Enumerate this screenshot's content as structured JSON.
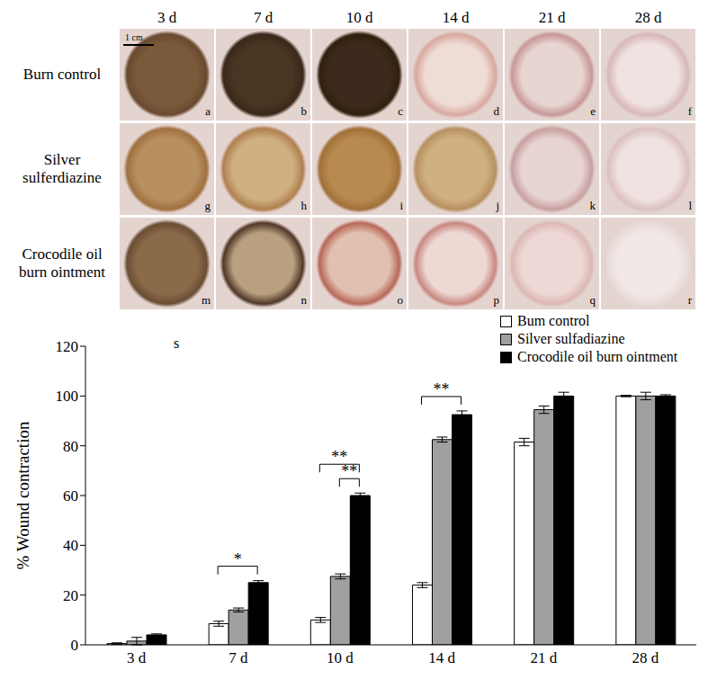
{
  "chart_data": {
    "type": "bar",
    "y_label": "% Wound contraction",
    "panel_label": "s",
    "categories": [
      "3 d",
      "7 d",
      "10 d",
      "14 d",
      "21 d",
      "28 d"
    ],
    "series": [
      {
        "name": "Bum control",
        "color": "#ffffff",
        "values": [
          0.5,
          8.5,
          10,
          24,
          81.5,
          100
        ],
        "errors": [
          0.3,
          1,
          1,
          1,
          1.5,
          0.3
        ]
      },
      {
        "name": "Silver sulfadiazine",
        "color": "#a0a0a0",
        "values": [
          1.5,
          14,
          27.5,
          82.5,
          94.5,
          100
        ],
        "errors": [
          1.5,
          0.8,
          1,
          1,
          1.5,
          1.5
        ]
      },
      {
        "name": "Crocodile oil burn ointment",
        "color": "#000000",
        "values": [
          4,
          25,
          60,
          92.5,
          100,
          100
        ],
        "errors": [
          0.4,
          0.8,
          1,
          1.5,
          1.5,
          0.5
        ]
      }
    ],
    "ylim": [
      0,
      120
    ],
    "yticks": [
      0,
      20,
      40,
      60,
      80,
      100,
      120
    ],
    "grid": false,
    "legend": "top-right",
    "significance": [
      {
        "category": "7 d",
        "from": "Bum control",
        "to": "Crocodile oil burn ointment",
        "label": "*"
      },
      {
        "category": "10 d",
        "from": "Silver sulfadiazine",
        "to": "Crocodile oil burn ointment",
        "label": "**"
      },
      {
        "category": "10 d",
        "from": "Bum control",
        "to": "Crocodile oil burn ointment",
        "label": "**"
      },
      {
        "category": "14 d",
        "from": "Bum control",
        "to": "Crocodile oil burn ointment",
        "label": "**"
      }
    ]
  },
  "photo_panel": {
    "columns": [
      "3 d",
      "7 d",
      "10 d",
      "14 d",
      "21 d",
      "28 d"
    ],
    "rows": [
      {
        "label": "Burn control",
        "letters": [
          "a",
          "b",
          "c",
          "d",
          "e",
          "f"
        ]
      },
      {
        "label": "Silver sulferdiazine",
        "letters": [
          "g",
          "h",
          "i",
          "j",
          "k",
          "l"
        ]
      },
      {
        "label": "Crocodile oil burn ointment",
        "letters": [
          "m",
          "n",
          "o",
          "p",
          "q",
          "r"
        ]
      }
    ],
    "scale_bar": "1 cm"
  }
}
